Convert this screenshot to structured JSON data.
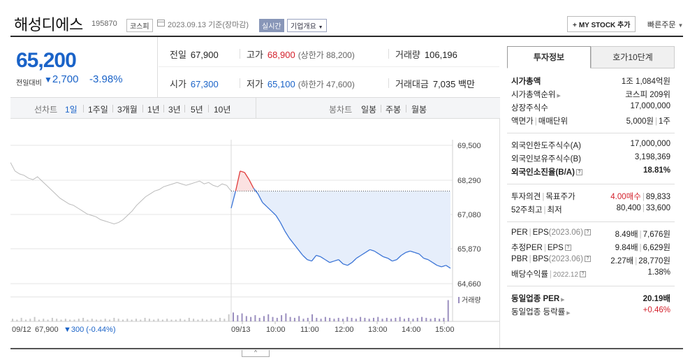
{
  "header": {
    "name": "해성디에스",
    "code": "195870",
    "market": "코스피",
    "date": "2023.09.13  기준(장마감)",
    "realtime": "실시간",
    "overview": "기업개요",
    "mystock": "MY STOCK 추가",
    "quick": "빠른주문"
  },
  "price": {
    "current": "65,200",
    "compare_label": "전일대비",
    "change": "2,700",
    "rate": "-3.98%",
    "direction": "down",
    "color": "#1a63c8"
  },
  "stats": {
    "prev_label": "전일",
    "prev": "67,900",
    "high_label": "고가",
    "high": "68,900",
    "upper_limit": "(상한가 88,200)",
    "volume_label": "거래량",
    "volume": "106,196",
    "open_label": "시가",
    "open": "67,300",
    "low_label": "저가",
    "low": "65,100",
    "lower_limit": "(하한가 47,600)",
    "value_label": "거래대금",
    "value": "7,035 백만"
  },
  "period": {
    "label": "선차트",
    "items": [
      "1일",
      "1주일",
      "3개월",
      "1년",
      "3년",
      "5년",
      "10년"
    ],
    "selected": "1일",
    "candle_label": "봉차트",
    "candle_items": [
      "일봉",
      "주봉",
      "월봉"
    ]
  },
  "chart_data": {
    "type": "line",
    "y_ticks": [
      "69,500",
      "68,290",
      "67,080",
      "65,870",
      "64,660"
    ],
    "ylim": [
      64660,
      69500
    ],
    "x_ticks": [
      "09/13",
      "10:00",
      "11:00",
      "12:00",
      "13:00",
      "14:00",
      "15:00"
    ],
    "prev_day_label": "09/12",
    "prev_day_price": "67,900",
    "prev_day_change": "▼300 (-0.44%)",
    "prev_close": 67900,
    "volume_label": "거래량",
    "prev_day_series": [
      68900,
      68600,
      68500,
      68450,
      68350,
      68300,
      68400,
      68250,
      68100,
      67950,
      67800,
      67650,
      67550,
      67450,
      67400,
      67300,
      67200,
      67100,
      67050,
      67000,
      66900,
      66850,
      66800,
      66750,
      66800,
      66900,
      67050,
      67200,
      67400,
      67550,
      67700,
      67800,
      67900,
      67950,
      68050,
      68100,
      68150,
      68200,
      68150,
      68100,
      68150,
      68200,
      68250,
      68150,
      68200,
      68100,
      68050,
      68150,
      68100,
      67900
    ],
    "today_series": [
      67300,
      67900,
      68600,
      68550,
      68300,
      68000,
      67800,
      67500,
      67350,
      67200,
      67050,
      66800,
      66500,
      66250,
      66050,
      65850,
      65650,
      65500,
      65450,
      65650,
      65600,
      65500,
      65400,
      65450,
      65500,
      65350,
      65300,
      65400,
      65550,
      65650,
      65750,
      65850,
      65800,
      65700,
      65600,
      65550,
      65450,
      65500,
      65650,
      65750,
      65800,
      65750,
      65700,
      65550,
      65500,
      65400,
      65300,
      65250,
      65300,
      65200
    ],
    "prev_day_volume": [
      3,
      2,
      4,
      2,
      3,
      5,
      2,
      3,
      2,
      4,
      3,
      2,
      3,
      2,
      2,
      3,
      4,
      2,
      3,
      2,
      2,
      3,
      2,
      4,
      3,
      2,
      3,
      2,
      3,
      2,
      4,
      3,
      2,
      3,
      2,
      3,
      2,
      2,
      3,
      2,
      4,
      3,
      2,
      3,
      2,
      3,
      2,
      4,
      3,
      8
    ],
    "today_volume": [
      10,
      7,
      9,
      6,
      5,
      7,
      4,
      6,
      8,
      5,
      4,
      7,
      9,
      5,
      4,
      6,
      3,
      4,
      8,
      4,
      3,
      5,
      4,
      3,
      4,
      3,
      5,
      4,
      3,
      5,
      4,
      3,
      4,
      5,
      3,
      4,
      3,
      4,
      5,
      3,
      4,
      3,
      4,
      5,
      4,
      3,
      4,
      3,
      4,
      24
    ]
  },
  "right_panel": {
    "tab_on": "투자정보",
    "tab_off": "호가10단계",
    "rows": [
      {
        "l": "시가총액",
        "r": "1조 1,084억원"
      },
      {
        "l": "시가총액순위",
        "r": "코스피 209위"
      },
      {
        "l": "상장주식수",
        "r": "17,000,000"
      },
      {
        "l": "액면가",
        "l2": "매매단위",
        "r": "5,000원",
        "r2": "1주"
      },
      {
        "l": "외국인한도주식수(A)",
        "r": "17,000,000"
      },
      {
        "l": "외국인보유주식수(B)",
        "r": "3,198,369"
      },
      {
        "l": "외국인소진율(B/A)",
        "r": "18.81%"
      },
      {
        "l": "투자의견",
        "l2": "목표주가",
        "r": "4.00매수",
        "r2": "89,833"
      },
      {
        "l": "52주최고",
        "l2": "최저",
        "r": "80,400",
        "r2": "33,600"
      },
      {
        "l": "PER",
        "l2": "EPS",
        "l3": "(2023.06)",
        "r": "8.49배",
        "r2": "7,676원"
      },
      {
        "l": "추정PER",
        "l2": "EPS",
        "r": "9.84배",
        "r2": "6,629원"
      },
      {
        "l": "PBR",
        "l2": "BPS",
        "l3": "(2023.06)",
        "r": "2.27배",
        "r2": "28,770원"
      },
      {
        "l": "배당수익률",
        "l3": "2022.12",
        "r": "1.38%"
      },
      {
        "l": "동일업종 PER",
        "r": "20.19배"
      },
      {
        "l": "동일업종 등락률",
        "r": "+0.46%"
      }
    ]
  }
}
